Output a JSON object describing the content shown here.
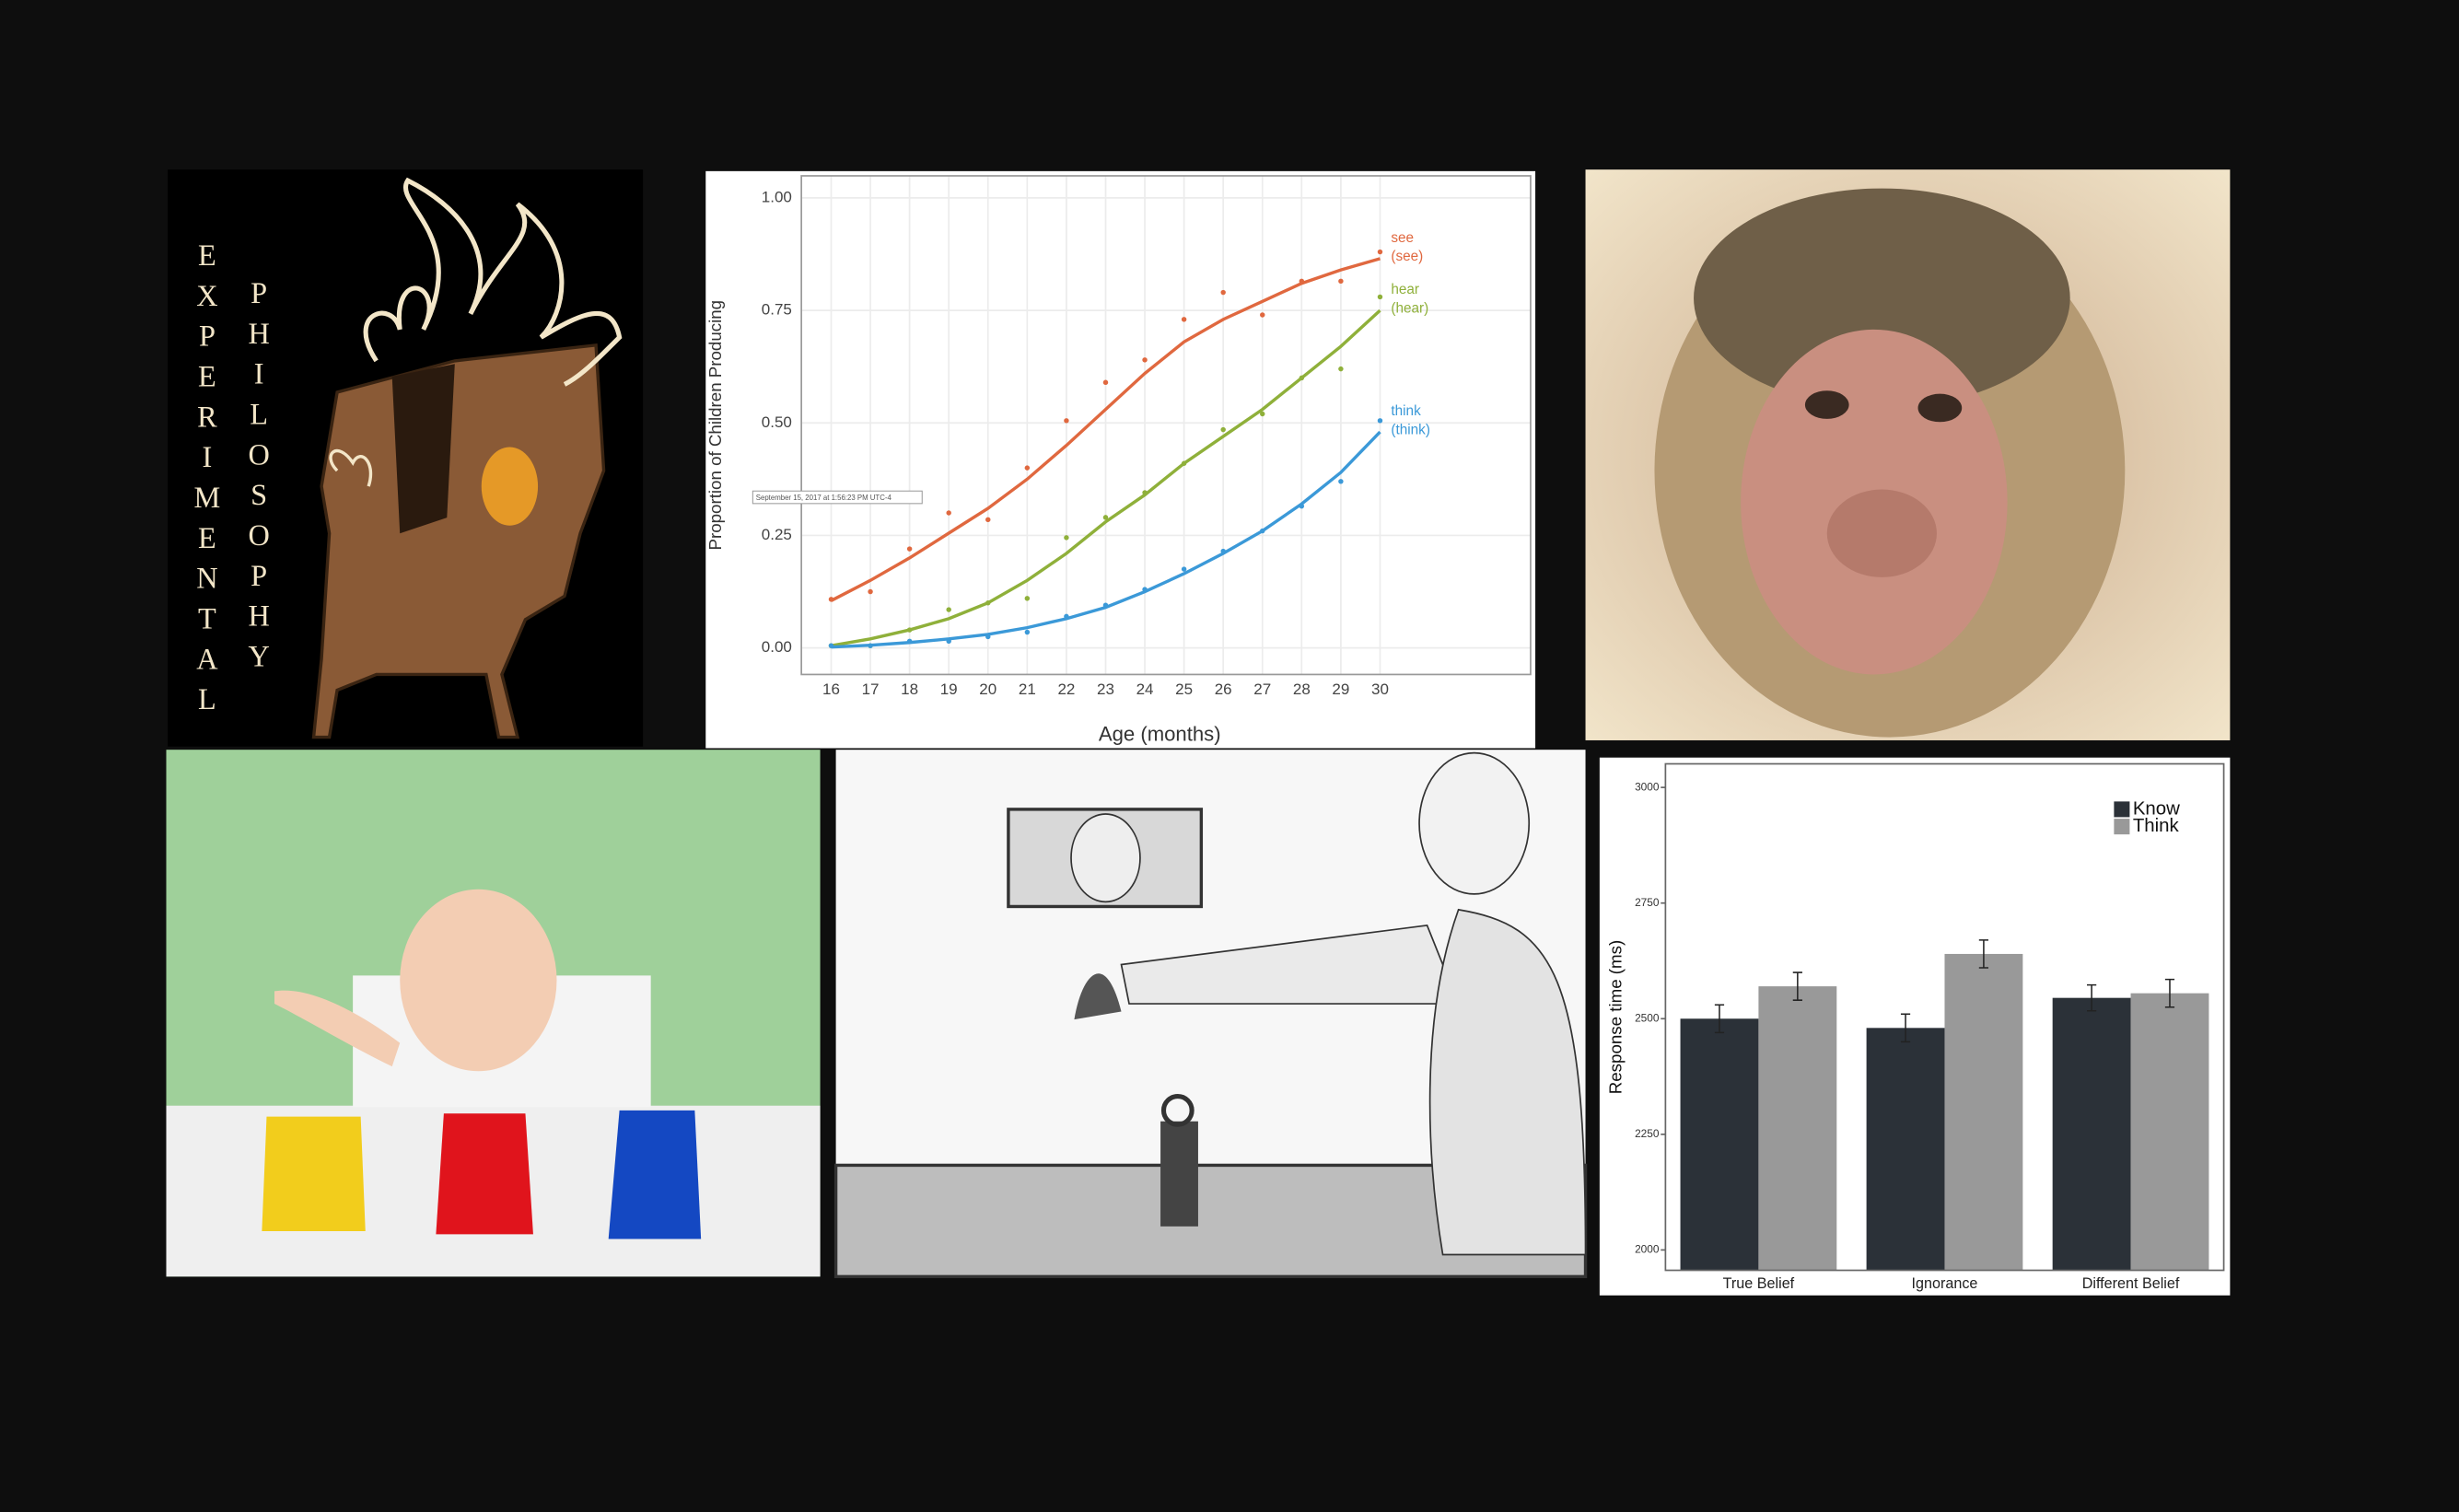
{
  "poster": {
    "word1": "EXPERIMENTAL",
    "word2": "PHILOSOPHY"
  },
  "chart_data": [
    {
      "type": "line",
      "x_label": "Age (months)",
      "y_label": "Proportion of Children Producing",
      "annotation": "September 15, 2017 at 1:56:23 PM UTC-4",
      "x": [
        16,
        17,
        18,
        19,
        20,
        21,
        22,
        23,
        24,
        25,
        26,
        27,
        28,
        29,
        30
      ],
      "xlim": [
        15.24,
        33.84
      ],
      "xticks": [
        16,
        17,
        18,
        19,
        20,
        21,
        22,
        23,
        24,
        25,
        26,
        27,
        28,
        29,
        30
      ],
      "ylim": [
        -0.059,
        1.049
      ],
      "yticks": [
        {
          "value": 0,
          "label": "0.00"
        },
        0.25,
        {
          "value": 0.5,
          "label": "0.50"
        },
        {
          "value": 0.75,
          "label": "0.75"
        },
        {
          "value": 1,
          "label": "1.00"
        }
      ],
      "grid": true,
      "series": [
        {
          "name": "see",
          "sublabel": "(see)",
          "color": "#e0683f",
          "values": [
            0.108,
            0.125,
            0.22,
            0.3,
            0.285,
            0.4,
            0.505,
            0.59,
            0.64,
            0.73,
            0.79,
            0.74,
            0.815,
            0.815,
            0.88
          ],
          "fit": [
            0.105,
            0.15,
            0.2,
            0.255,
            0.31,
            0.375,
            0.45,
            0.53,
            0.61,
            0.68,
            0.73,
            0.77,
            0.81,
            0.84,
            0.865
          ]
        },
        {
          "name": "hear",
          "sublabel": "(hear)",
          "color": "#8fb03a",
          "values": [
            0.005,
            0.005,
            0.04,
            0.085,
            0.1,
            0.11,
            0.245,
            0.29,
            0.345,
            0.41,
            0.485,
            0.52,
            0.6,
            0.62,
            0.78
          ],
          "fit": [
            0.005,
            0.02,
            0.04,
            0.065,
            0.1,
            0.15,
            0.21,
            0.28,
            0.34,
            0.41,
            0.47,
            0.53,
            0.6,
            0.67,
            0.75
          ]
        },
        {
          "name": "think",
          "sublabel": "(think)",
          "color": "#3b99d8",
          "values": [
            0.005,
            0.005,
            0.015,
            0.015,
            0.025,
            0.035,
            0.07,
            0.095,
            0.13,
            0.175,
            0.215,
            0.26,
            0.315,
            0.37,
            0.505
          ],
          "fit": [
            0.002,
            0.006,
            0.012,
            0.02,
            0.03,
            0.045,
            0.065,
            0.09,
            0.125,
            0.165,
            0.21,
            0.26,
            0.32,
            0.39,
            0.48
          ]
        }
      ]
    },
    {
      "type": "bar",
      "y_label": "Response time (ms)",
      "categories": [
        "True Belief",
        "Ignorance",
        "Different Belief"
      ],
      "ylim": [
        1956,
        3051
      ],
      "yticks": [
        2000,
        2250,
        2500,
        2750,
        3000
      ],
      "legend": "top-right",
      "series": [
        {
          "name": "Know",
          "color": "#2b3138",
          "values": [
            2500,
            2480,
            2545
          ],
          "errors": [
            30,
            30,
            28
          ]
        },
        {
          "name": "Think",
          "color": "#999999",
          "values": [
            2570,
            2640,
            2555
          ],
          "errors": [
            30,
            30,
            30
          ]
        }
      ]
    }
  ]
}
